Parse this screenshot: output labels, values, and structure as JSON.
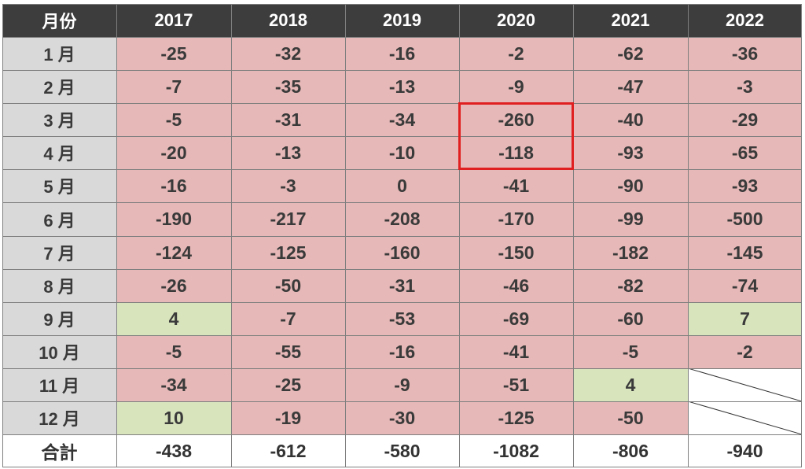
{
  "chart_data": {
    "type": "table",
    "corner_label": "月份",
    "columns": [
      "2017",
      "2018",
      "2019",
      "2020",
      "2021",
      "2022"
    ],
    "rows": [
      {
        "label": "1 月",
        "values": [
          -25,
          -32,
          -16,
          -2,
          -62,
          -36
        ]
      },
      {
        "label": "2 月",
        "values": [
          -7,
          -35,
          -13,
          -9,
          -47,
          -3
        ]
      },
      {
        "label": "3 月",
        "values": [
          -5,
          -31,
          -34,
          -260,
          -40,
          -29
        ]
      },
      {
        "label": "4 月",
        "values": [
          -20,
          -13,
          -10,
          -118,
          -93,
          -65
        ]
      },
      {
        "label": "5 月",
        "values": [
          -16,
          -3,
          0,
          -41,
          -90,
          -93
        ]
      },
      {
        "label": "6 月",
        "values": [
          -190,
          -217,
          -208,
          -170,
          -99,
          -500
        ]
      },
      {
        "label": "7 月",
        "values": [
          -124,
          -125,
          -160,
          -150,
          -182,
          -145
        ]
      },
      {
        "label": "8 月",
        "values": [
          -26,
          -50,
          -31,
          -46,
          -82,
          -74
        ]
      },
      {
        "label": "9 月",
        "values": [
          4,
          -7,
          -53,
          -69,
          -60,
          7
        ]
      },
      {
        "label": "10 月",
        "values": [
          -5,
          -55,
          -16,
          -41,
          -5,
          -2
        ]
      },
      {
        "label": "11 月",
        "values": [
          -34,
          -25,
          -9,
          -51,
          4,
          null
        ]
      },
      {
        "label": "12 月",
        "values": [
          10,
          -19,
          -30,
          -125,
          -50,
          null
        ]
      }
    ],
    "total": {
      "label": "合計",
      "values": [
        -438,
        -612,
        -580,
        -1082,
        -806,
        -940
      ]
    },
    "highlight": {
      "column": "2020",
      "rows": [
        "3 月",
        "4 月"
      ],
      "color": "#e02020"
    },
    "colors": {
      "header_bg": "#3d3d3d",
      "header_text": "#ffffff",
      "month_bg": "#d9d9d9",
      "negative_bg": "#e6b8b7",
      "positive_bg": "#d8e4bc",
      "total_bg": "#ffffff",
      "text": "#3a3a3a",
      "grid": "#7f7f7f"
    }
  }
}
